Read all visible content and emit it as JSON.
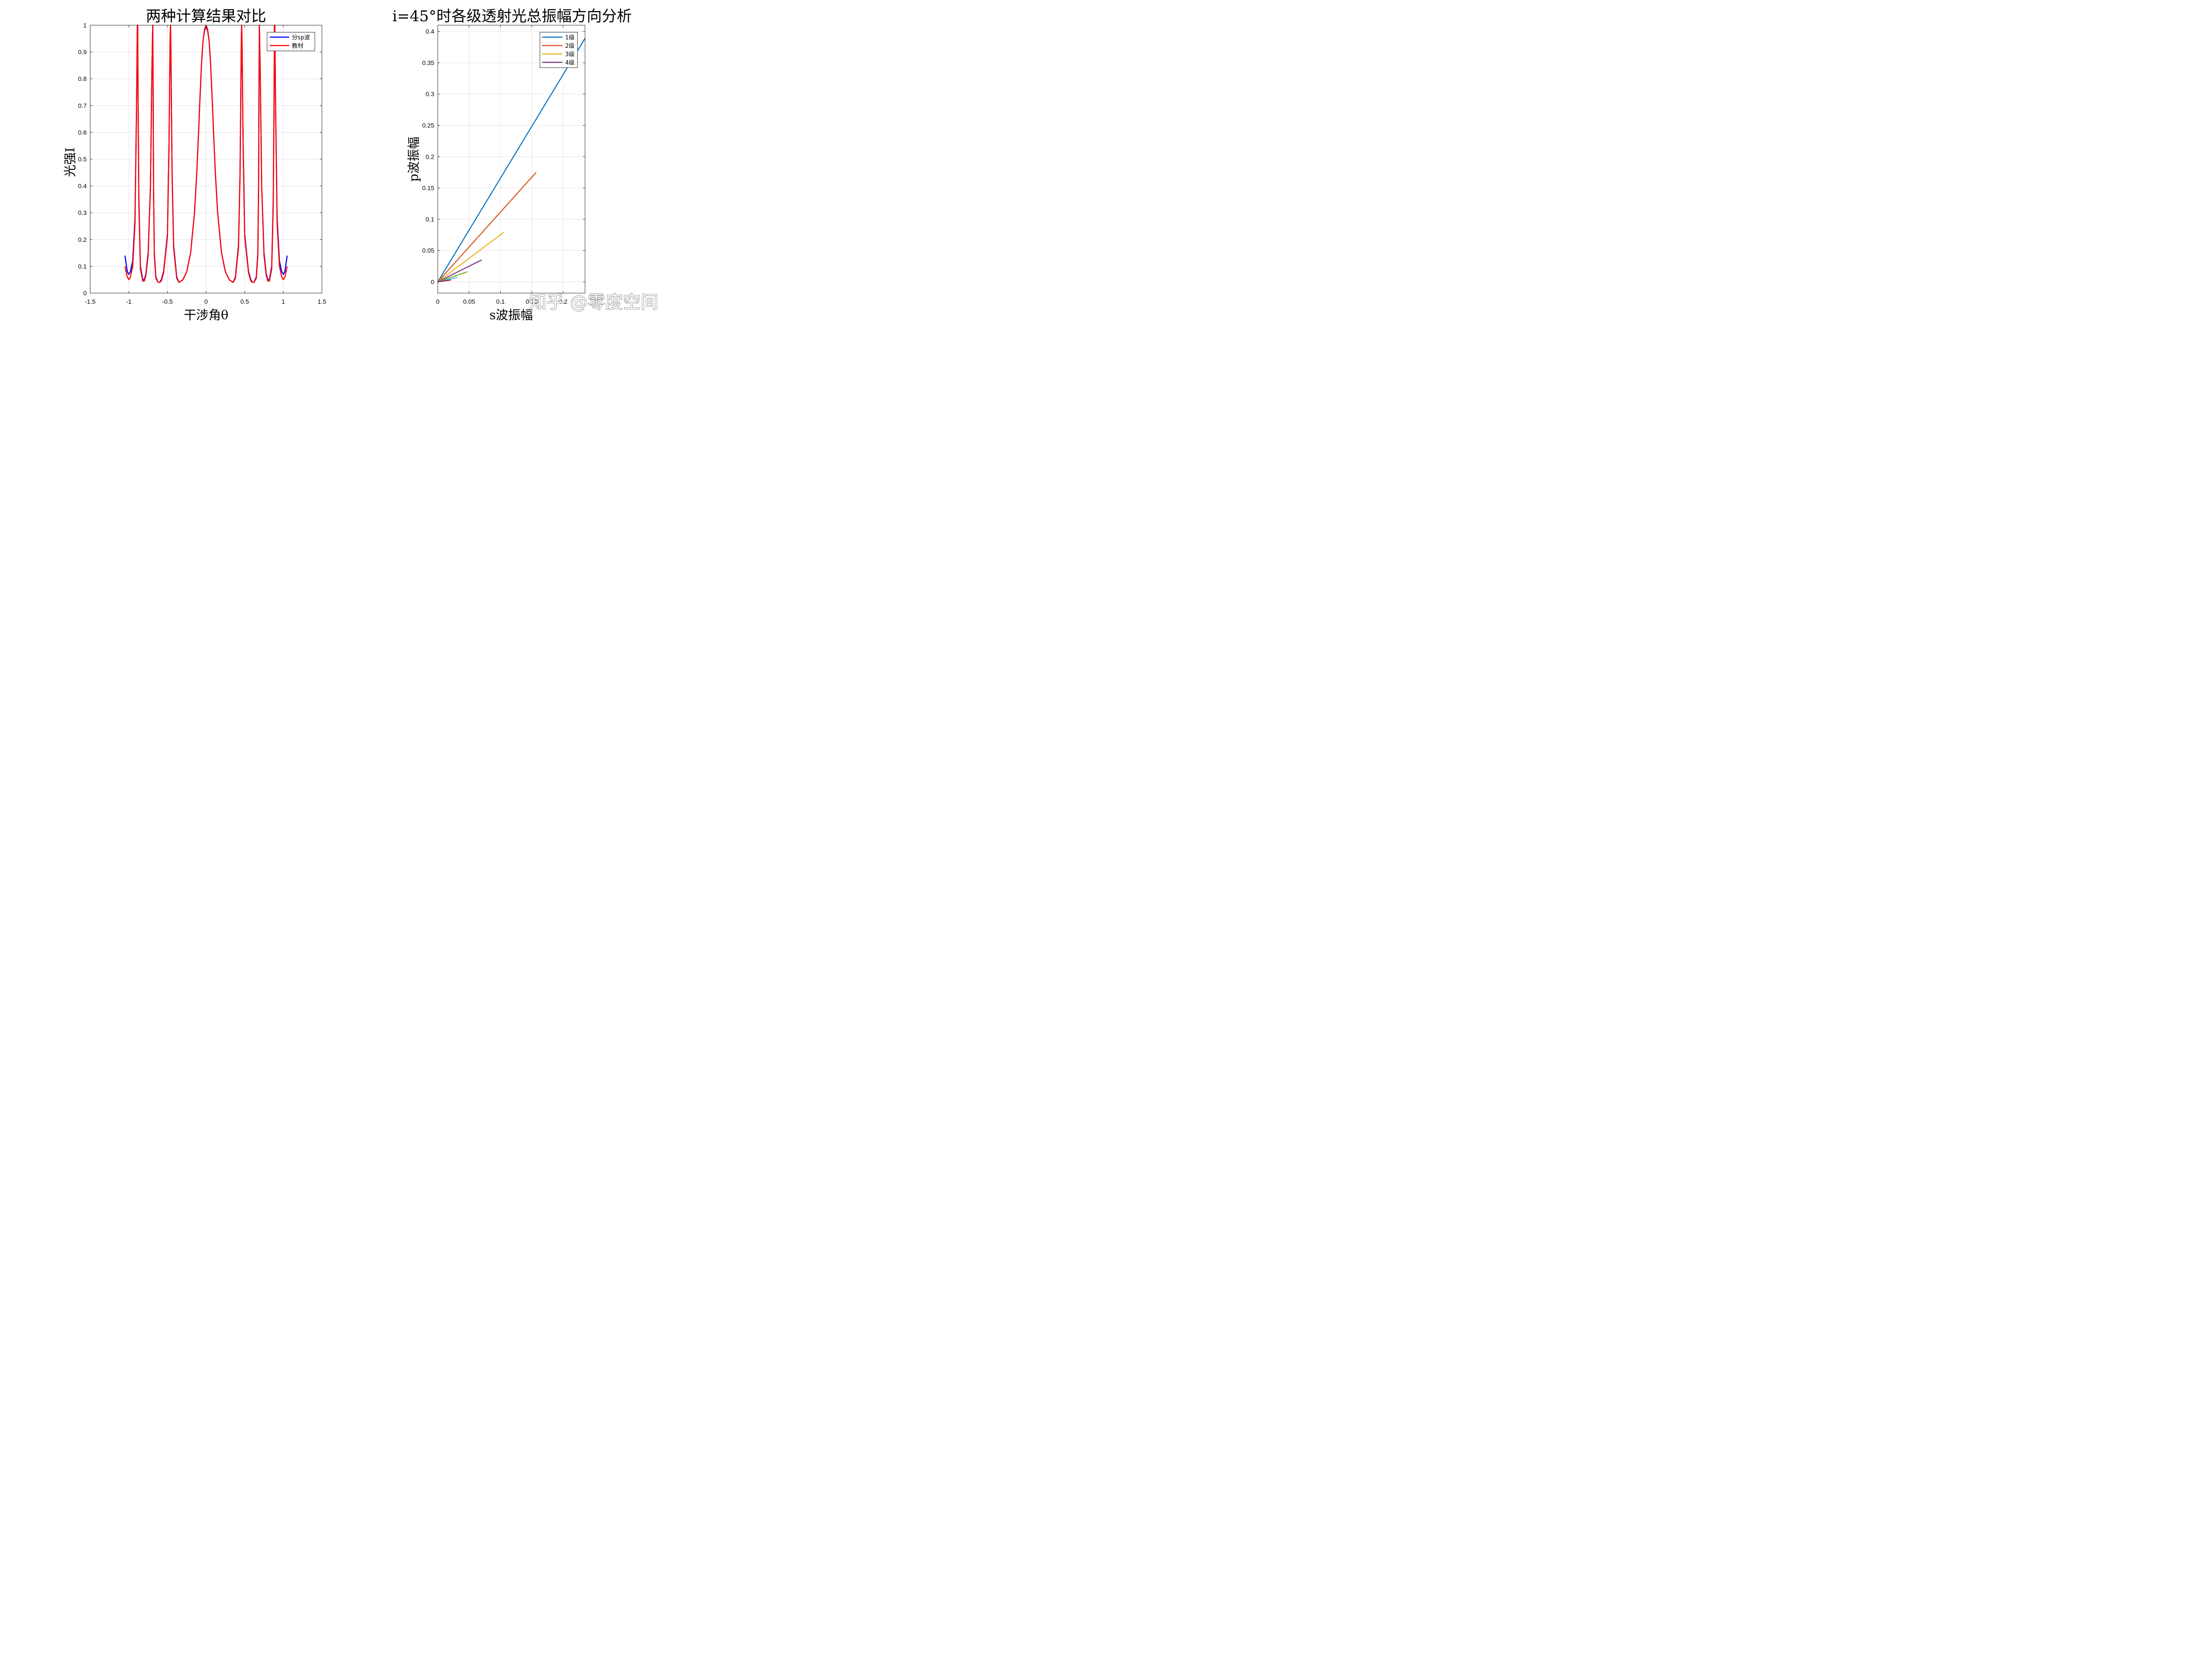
{
  "watermark": "知乎 @零度空间",
  "chart_data": [
    {
      "type": "line",
      "title": "两种计算结果对比",
      "xlabel": "干涉角θ",
      "ylabel": "光强I",
      "xlim": [
        -1.5,
        1.5
      ],
      "ylim": [
        0,
        1
      ],
      "xticks": [
        -1.5,
        -1,
        -0.5,
        0,
        0.5,
        1,
        1.5
      ],
      "xtick_labels": [
        "-1.5",
        "-1",
        "-0.5",
        "0",
        "0.5",
        "1",
        "1.5"
      ],
      "yticks": [
        0,
        0.1,
        0.2,
        0.3,
        0.4,
        0.5,
        0.6,
        0.7,
        0.8,
        0.9,
        1
      ],
      "ytick_labels": [
        "0",
        "0.1",
        "0.2",
        "0.3",
        "0.4",
        "0.5",
        "0.6",
        "0.7",
        "0.8",
        "0.9",
        "1"
      ],
      "grid": true,
      "legend_position": "top-right",
      "series": [
        {
          "name": "分sp波",
          "color": "#0000ff",
          "x": [
            -1.05,
            -1.02,
            -1.0,
            -0.98,
            -0.95,
            -0.92,
            -0.9,
            -0.89,
            -0.885,
            -0.88,
            -0.87,
            -0.85,
            -0.82,
            -0.8,
            -0.78,
            -0.75,
            -0.72,
            -0.7,
            -0.69,
            -0.685,
            -0.68,
            -0.67,
            -0.65,
            -0.62,
            -0.6,
            -0.58,
            -0.55,
            -0.5,
            -0.48,
            -0.465,
            -0.46,
            -0.455,
            -0.44,
            -0.42,
            -0.38,
            -0.35,
            -0.3,
            -0.25,
            -0.2,
            -0.15,
            -0.12,
            -0.1,
            -0.08,
            -0.06,
            -0.04,
            -0.02,
            0.0,
            0.02,
            0.04,
            0.06,
            0.08,
            0.1,
            0.12,
            0.15,
            0.2,
            0.25,
            0.3,
            0.35,
            0.38,
            0.42,
            0.44,
            0.455,
            0.46,
            0.465,
            0.48,
            0.5,
            0.55,
            0.58,
            0.6,
            0.62,
            0.65,
            0.67,
            0.68,
            0.685,
            0.69,
            0.7,
            0.72,
            0.75,
            0.78,
            0.8,
            0.82,
            0.85,
            0.87,
            0.88,
            0.885,
            0.89,
            0.9,
            0.92,
            0.95,
            0.98,
            1.0,
            1.02,
            1.05
          ],
          "y": [
            0.14,
            0.08,
            0.07,
            0.08,
            0.12,
            0.28,
            0.7,
            0.99,
            1.0,
            0.7,
            0.35,
            0.1,
            0.05,
            0.05,
            0.07,
            0.15,
            0.4,
            0.85,
            1.0,
            0.75,
            0.4,
            0.15,
            0.06,
            0.04,
            0.04,
            0.05,
            0.08,
            0.22,
            0.55,
            0.95,
            1.0,
            0.9,
            0.45,
            0.18,
            0.06,
            0.04,
            0.05,
            0.08,
            0.15,
            0.3,
            0.45,
            0.58,
            0.72,
            0.85,
            0.94,
            0.98,
            0.995,
            0.98,
            0.94,
            0.85,
            0.72,
            0.58,
            0.45,
            0.3,
            0.15,
            0.08,
            0.05,
            0.04,
            0.06,
            0.18,
            0.45,
            0.9,
            1.0,
            0.95,
            0.55,
            0.22,
            0.08,
            0.05,
            0.04,
            0.04,
            0.06,
            0.15,
            0.4,
            0.75,
            1.0,
            0.85,
            0.4,
            0.15,
            0.07,
            0.05,
            0.05,
            0.1,
            0.35,
            0.7,
            1.0,
            0.99,
            0.7,
            0.28,
            0.12,
            0.08,
            0.07,
            0.08,
            0.14
          ]
        },
        {
          "name": "教材",
          "color": "#ff0000",
          "x": [
            -1.05,
            -1.02,
            -1.0,
            -0.98,
            -0.95,
            -0.92,
            -0.9,
            -0.89,
            -0.885,
            -0.88,
            -0.87,
            -0.85,
            -0.82,
            -0.8,
            -0.78,
            -0.75,
            -0.72,
            -0.7,
            -0.69,
            -0.685,
            -0.68,
            -0.67,
            -0.65,
            -0.62,
            -0.6,
            -0.58,
            -0.55,
            -0.5,
            -0.48,
            -0.465,
            -0.46,
            -0.455,
            -0.44,
            -0.42,
            -0.38,
            -0.35,
            -0.3,
            -0.25,
            -0.2,
            -0.15,
            -0.12,
            -0.1,
            -0.08,
            -0.06,
            -0.04,
            -0.02,
            0.0,
            0.02,
            0.04,
            0.06,
            0.08,
            0.1,
            0.12,
            0.15,
            0.2,
            0.25,
            0.3,
            0.35,
            0.38,
            0.42,
            0.44,
            0.455,
            0.46,
            0.465,
            0.48,
            0.5,
            0.55,
            0.58,
            0.6,
            0.62,
            0.65,
            0.67,
            0.68,
            0.685,
            0.69,
            0.7,
            0.72,
            0.75,
            0.78,
            0.8,
            0.82,
            0.85,
            0.87,
            0.88,
            0.885,
            0.89,
            0.9,
            0.92,
            0.95,
            0.98,
            1.0,
            1.02,
            1.05
          ],
          "y": [
            0.1,
            0.06,
            0.05,
            0.06,
            0.1,
            0.26,
            0.7,
            1.0,
            1.0,
            0.7,
            0.33,
            0.09,
            0.045,
            0.045,
            0.065,
            0.14,
            0.4,
            0.85,
            1.0,
            0.75,
            0.4,
            0.14,
            0.055,
            0.04,
            0.04,
            0.045,
            0.075,
            0.21,
            0.55,
            0.96,
            1.0,
            0.9,
            0.44,
            0.17,
            0.055,
            0.04,
            0.05,
            0.08,
            0.15,
            0.3,
            0.45,
            0.58,
            0.72,
            0.85,
            0.94,
            0.985,
            1.0,
            0.985,
            0.94,
            0.85,
            0.72,
            0.58,
            0.45,
            0.3,
            0.15,
            0.08,
            0.05,
            0.04,
            0.055,
            0.17,
            0.44,
            0.9,
            1.0,
            0.96,
            0.55,
            0.21,
            0.075,
            0.045,
            0.04,
            0.04,
            0.055,
            0.14,
            0.4,
            0.75,
            1.0,
            0.85,
            0.4,
            0.14,
            0.065,
            0.045,
            0.045,
            0.09,
            0.33,
            0.7,
            1.0,
            1.0,
            0.7,
            0.26,
            0.1,
            0.06,
            0.05,
            0.06,
            0.1
          ]
        }
      ]
    },
    {
      "type": "line",
      "title": "i=45°时各级透射光总振幅方向分析",
      "xlabel": "s波振幅",
      "ylabel": "p波振幅",
      "xlim": [
        0,
        0.235
      ],
      "ylim": [
        -0.018,
        0.41
      ],
      "xticks": [
        0,
        0.05,
        0.1,
        0.15,
        0.2
      ],
      "xtick_labels": [
        "0",
        "0.05",
        "0.1",
        "0.15",
        "0.2"
      ],
      "yticks": [
        0,
        0.05,
        0.1,
        0.15,
        0.2,
        0.25,
        0.3,
        0.35,
        0.4
      ],
      "ytick_labels": [
        "0",
        "0.05",
        "0.1",
        "0.15",
        "0.2",
        "0.25",
        "0.3",
        "0.35",
        "0.4"
      ],
      "grid": true,
      "legend_position": "top-right",
      "series": [
        {
          "name": "1级",
          "color": "#0072bd",
          "x": [
            0,
            0.235
          ],
          "y": [
            0,
            0.389
          ]
        },
        {
          "name": "2级",
          "color": "#d95319",
          "x": [
            0,
            0.157
          ],
          "y": [
            0,
            0.175
          ]
        },
        {
          "name": "3级",
          "color": "#edb120",
          "x": [
            0,
            0.105
          ],
          "y": [
            0,
            0.079
          ]
        },
        {
          "name": "4级",
          "color": "#7e2f8e",
          "x": [
            0,
            0.07
          ],
          "y": [
            0,
            0.035
          ]
        },
        {
          "color": "#77ac30",
          "x": [
            0,
            0.047
          ],
          "y": [
            0,
            0.016
          ]
        },
        {
          "color": "#4dbeee",
          "x": [
            0,
            0.031
          ],
          "y": [
            0,
            0.007
          ]
        },
        {
          "color": "#a2142f",
          "x": [
            0,
            0.021
          ],
          "y": [
            0,
            0.003
          ]
        }
      ]
    }
  ]
}
